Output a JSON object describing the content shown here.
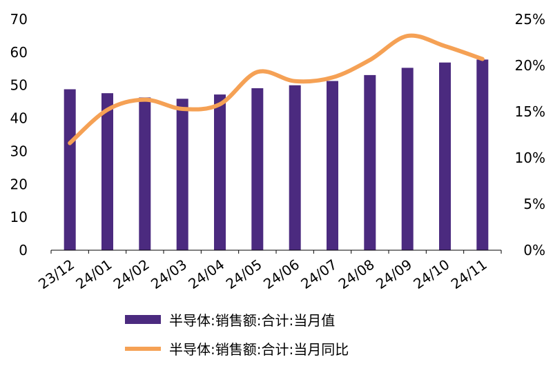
{
  "chart_data": {
    "type": "bar",
    "categories": [
      "23/12",
      "24/01",
      "24/02",
      "24/03",
      "24/04",
      "24/05",
      "24/06",
      "24/07",
      "24/08",
      "24/09",
      "24/10",
      "24/11"
    ],
    "series": [
      {
        "name": "半导体:销售额:合计:当月值",
        "type": "bar",
        "axis": "left",
        "color": "#4b2a7f",
        "values": [
          48.8,
          47.6,
          46.3,
          45.9,
          47.2,
          49.1,
          50.0,
          51.3,
          53.1,
          55.3,
          56.9,
          57.8
        ]
      },
      {
        "name": "半导体:销售额:合计:当月同比",
        "type": "line",
        "axis": "right",
        "color": "#f5a155",
        "values": [
          11.6,
          15.2,
          16.3,
          15.3,
          15.8,
          19.3,
          18.3,
          18.7,
          20.6,
          23.2,
          22.1,
          20.7
        ]
      }
    ],
    "y_left": {
      "ylim": [
        0,
        70
      ],
      "ticks": [
        "0",
        "10",
        "20",
        "30",
        "40",
        "50",
        "60",
        "70"
      ]
    },
    "y_right": {
      "ylim": [
        0,
        25
      ],
      "ticks": [
        "0%",
        "5%",
        "10%",
        "15%",
        "20%",
        "25%"
      ]
    },
    "grid": false,
    "legend_position": "bottom"
  }
}
